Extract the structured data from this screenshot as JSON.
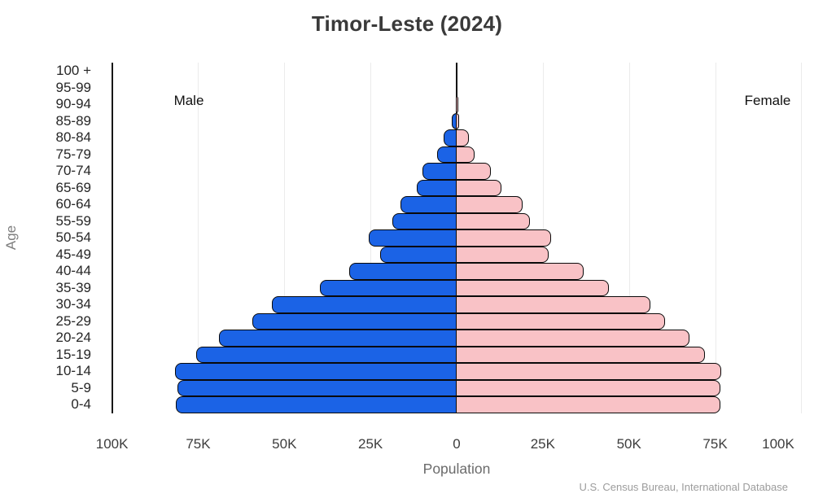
{
  "title": "Timor-Leste (2024)",
  "left_group_label": "Male",
  "right_group_label": "Female",
  "y_axis_label": "Age",
  "x_axis_label": "Population",
  "source": "U.S. Census Bureau, International Database",
  "colors": {
    "male_fill": "#1b63e6",
    "female_fill": "#f9c2c6",
    "bar_outline": "#0a0a0a",
    "gridline": "#ebebeb",
    "axis_spine": "#171717"
  },
  "chart_data": {
    "type": "bar",
    "subtype": "population-pyramid",
    "title": "Timor-Leste (2024)",
    "xlabel": "Population",
    "ylabel": "Age",
    "unit": "thousands of people",
    "categories_order": "top-to-bottom",
    "categories": [
      "100 +",
      "95-99",
      "90-94",
      "85-89",
      "80-84",
      "75-79",
      "70-74",
      "65-69",
      "60-64",
      "55-59",
      "50-54",
      "45-49",
      "40-44",
      "35-39",
      "30-34",
      "25-29",
      "20-24",
      "15-19",
      "10-14",
      "5-9",
      "0-4"
    ],
    "series": [
      {
        "name": "Male",
        "side": "left",
        "values_thousands": [
          0.02,
          0.08,
          0.3,
          1.3,
          3.8,
          5.6,
          10.0,
          11.5,
          16.2,
          18.6,
          25.5,
          22.3,
          31.2,
          39.6,
          53.5,
          59.2,
          69.0,
          75.5,
          81.7,
          81.1,
          81.5
        ]
      },
      {
        "name": "Female",
        "side": "right",
        "values_thousands": [
          0.03,
          0.1,
          0.4,
          0.6,
          3.5,
          5.3,
          10.0,
          13.0,
          19.1,
          21.3,
          27.3,
          26.7,
          36.9,
          44.2,
          56.1,
          60.4,
          67.5,
          72.0,
          76.7,
          76.5,
          76.5
        ]
      }
    ],
    "xlim_thousands": [
      -100,
      100
    ],
    "xticks": [
      {
        "label": "100K",
        "value_thousands": -100
      },
      {
        "label": "75K",
        "value_thousands": -75
      },
      {
        "label": "50K",
        "value_thousands": -50
      },
      {
        "label": "25K",
        "value_thousands": -25
      },
      {
        "label": "0",
        "value_thousands": 0
      },
      {
        "label": "25K",
        "value_thousands": 25
      },
      {
        "label": "50K",
        "value_thousands": 50
      },
      {
        "label": "75K",
        "value_thousands": 75
      },
      {
        "label": "100K",
        "value_thousands": 100
      }
    ],
    "grid": true,
    "legend_position": "in-plot annotations (Male left, Female right)"
  }
}
